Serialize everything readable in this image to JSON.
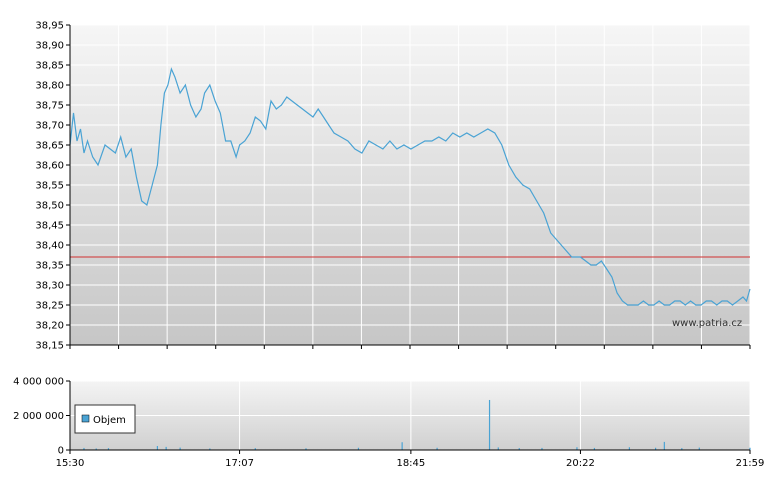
{
  "watermark": "www.patria.cz",
  "chart_data": [
    {
      "type": "line",
      "title": "",
      "ylabel": "",
      "xlabel": "",
      "ylim": [
        38.15,
        38.95
      ],
      "y_ticks": [
        "38,95",
        "38,90",
        "38,85",
        "38,80",
        "38,75",
        "38,70",
        "38,65",
        "38,60",
        "38,55",
        "38,50",
        "38,45",
        "38,40",
        "38,35",
        "38,30",
        "38,25",
        "38,20",
        "38,15"
      ],
      "x_range_minutes": [
        930,
        1319
      ],
      "reference_line": {
        "value": 38.37,
        "color": "#d03030"
      },
      "line_color": "#4aa3d4",
      "grid": true,
      "series": [
        {
          "x": [
            "15:30",
            "15:32",
            "15:34",
            "15:36",
            "15:38",
            "15:40",
            "15:43",
            "15:46",
            "15:50",
            "15:53",
            "15:56",
            "15:59",
            "16:02",
            "16:05",
            "16:08",
            "16:11",
            "16:14",
            "16:17",
            "16:20",
            "16:22",
            "16:24",
            "16:26",
            "16:28",
            "16:30",
            "16:33",
            "16:36",
            "16:39",
            "16:42",
            "16:45",
            "16:47",
            "16:50",
            "16:53",
            "16:56",
            "16:59",
            "17:02",
            "17:05",
            "17:07",
            "17:10",
            "17:13",
            "17:16",
            "17:19",
            "17:22",
            "17:25",
            "17:28",
            "17:31",
            "17:34",
            "17:37",
            "17:40",
            "17:43",
            "17:46",
            "17:49",
            "17:52",
            "17:55",
            "17:58",
            "18:01",
            "18:05",
            "18:09",
            "18:13",
            "18:17",
            "18:21",
            "18:25",
            "18:29",
            "18:33",
            "18:37",
            "18:41",
            "18:45",
            "18:49",
            "18:53",
            "18:57",
            "19:01",
            "19:05",
            "19:09",
            "19:13",
            "19:17",
            "19:21",
            "19:25",
            "19:29",
            "19:33",
            "19:37",
            "19:41",
            "19:45",
            "19:49",
            "19:53",
            "19:57",
            "20:01",
            "20:05",
            "20:09",
            "20:13",
            "20:17",
            "20:22",
            "20:25",
            "20:28",
            "20:31",
            "20:34",
            "20:37",
            "20:40",
            "20:43",
            "20:46",
            "20:49",
            "20:52",
            "20:55",
            "20:58",
            "21:01",
            "21:04",
            "21:07",
            "21:10",
            "21:13",
            "21:16",
            "21:19",
            "21:22",
            "21:25",
            "21:28",
            "21:31",
            "21:34",
            "21:37",
            "21:40",
            "21:43",
            "21:46",
            "21:49",
            "21:52",
            "21:55",
            "21:57",
            "21:59"
          ],
          "values": [
            38.65,
            38.73,
            38.66,
            38.69,
            38.63,
            38.66,
            38.62,
            38.6,
            38.65,
            38.64,
            38.63,
            38.67,
            38.62,
            38.64,
            38.57,
            38.51,
            38.5,
            38.55,
            38.6,
            38.7,
            38.78,
            38.8,
            38.84,
            38.82,
            38.78,
            38.8,
            38.75,
            38.72,
            38.74,
            38.78,
            38.8,
            38.76,
            38.73,
            38.66,
            38.66,
            38.62,
            38.65,
            38.66,
            38.68,
            38.72,
            38.71,
            38.69,
            38.76,
            38.74,
            38.75,
            38.77,
            38.76,
            38.75,
            38.74,
            38.73,
            38.72,
            38.74,
            38.72,
            38.7,
            38.68,
            38.67,
            38.66,
            38.64,
            38.63,
            38.66,
            38.65,
            38.64,
            38.66,
            38.64,
            38.65,
            38.64,
            38.65,
            38.66,
            38.66,
            38.67,
            38.66,
            38.68,
            38.67,
            38.68,
            38.67,
            38.68,
            38.69,
            38.68,
            38.65,
            38.6,
            38.57,
            38.55,
            38.54,
            38.51,
            38.48,
            38.43,
            38.41,
            38.39,
            38.37,
            38.37,
            38.36,
            38.35,
            38.35,
            38.36,
            38.34,
            38.32,
            38.28,
            38.26,
            38.25,
            38.25,
            38.25,
            38.26,
            38.25,
            38.25,
            38.26,
            38.25,
            38.25,
            38.26,
            38.26,
            38.25,
            38.26,
            38.25,
            38.25,
            38.26,
            38.26,
            38.25,
            38.26,
            38.26,
            38.25,
            38.26,
            38.27,
            38.26,
            38.29
          ]
        }
      ]
    },
    {
      "type": "bar",
      "title": "",
      "ylim": [
        0,
        4000000
      ],
      "y_ticks": [
        "4 000 000",
        "2 000 000",
        "0"
      ],
      "x_ticks": [
        "15:30",
        "17:07",
        "18:45",
        "20:22",
        "21:59"
      ],
      "bar_color": "#4aa3d4",
      "legend": {
        "label": "Objem",
        "placement": "top-left"
      },
      "series": [
        {
          "name": "Objem",
          "x": [
            "15:38",
            "15:45",
            "15:52",
            "16:20",
            "16:25",
            "16:33",
            "16:50",
            "17:16",
            "17:45",
            "18:15",
            "18:40",
            "19:00",
            "19:30",
            "19:35",
            "19:47",
            "20:00",
            "20:20",
            "20:30",
            "20:50",
            "21:05",
            "21:10",
            "21:20",
            "21:30",
            "21:59"
          ],
          "values": [
            120000,
            90000,
            110000,
            230000,
            180000,
            140000,
            90000,
            110000,
            100000,
            130000,
            450000,
            130000,
            2900000,
            150000,
            110000,
            120000,
            160000,
            120000,
            160000,
            130000,
            470000,
            110000,
            140000,
            130000
          ]
        }
      ]
    }
  ]
}
